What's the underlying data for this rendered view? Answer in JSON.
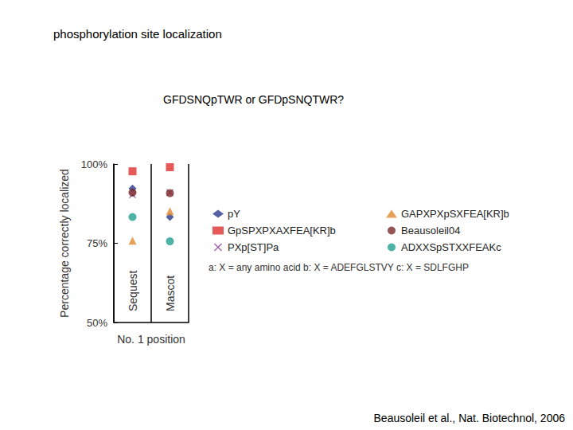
{
  "chart_data": {
    "type": "scatter",
    "title": "phosphorylation site localization",
    "subtitle": "GFDSNQpTWR or GFDpSNQTWR?",
    "x_label": "No. 1 position",
    "y_label": "Percentage correctly localized",
    "categories": [
      "Sequest",
      "Mascot"
    ],
    "series": [
      {
        "name": "pY",
        "color": "#2b3a8c",
        "marker": "diamond",
        "values": [
          92.3,
          83.3
        ]
      },
      {
        "name": "GpSPXPXAXFEA[KR]b",
        "color": "#e03030",
        "marker": "square",
        "values": [
          97.7,
          99.0
        ]
      },
      {
        "name": "PXp[ST]Pa",
        "color": "#8a3a9a",
        "marker": "x",
        "values": [
          90.3,
          91.0
        ]
      },
      {
        "name": "GAPXPXpSXFEA[KR]b",
        "color": "#e08a30",
        "marker": "triangle",
        "values": [
          75.8,
          85.1
        ]
      },
      {
        "name": "Beausoleil04",
        "color": "#7a2a2a",
        "marker": "circle",
        "values": [
          91.0,
          90.8
        ]
      },
      {
        "name": "ADXXSpSTXXFEAKc",
        "color": "#20a090",
        "marker": "circle",
        "values": [
          83.3,
          75.6
        ]
      }
    ],
    "ylim": [
      50,
      100
    ],
    "yticks": [
      {
        "value": 50,
        "label": "50%"
      },
      {
        "value": 75,
        "label": "75%"
      },
      {
        "value": 100,
        "label": "100%"
      }
    ],
    "grid": false,
    "legend": "right",
    "annotations": [
      "a: X = any amino acid b: X = ADEFGLSTVY c: X = SDLFGHP",
      "Beausoleil et al., Nat. Biotechnol, 2006"
    ]
  }
}
